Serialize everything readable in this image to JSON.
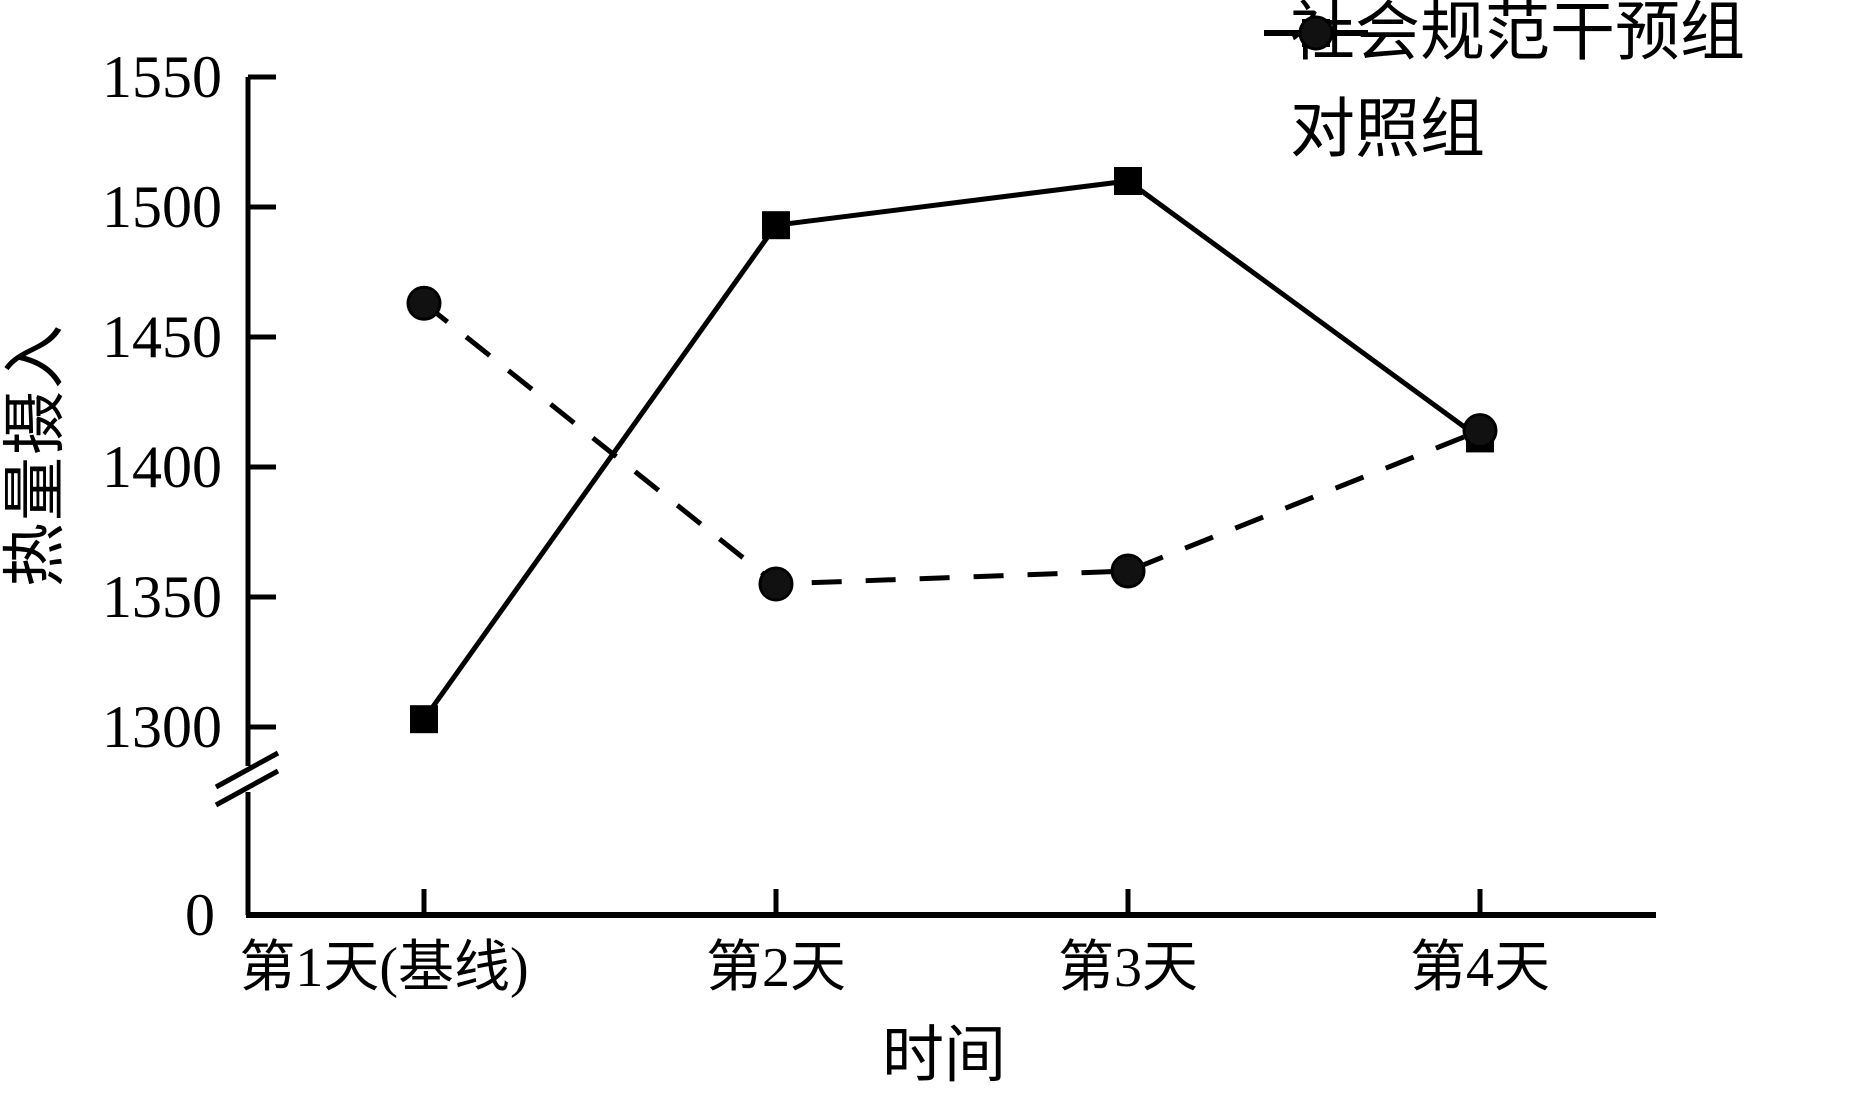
{
  "chart_data": {
    "type": "line",
    "title": "",
    "categories": [
      "第1天(基线)",
      "第2天",
      "第3天",
      "第4天"
    ],
    "series": [
      {
        "name": "社会规范干预组",
        "marker": "square",
        "line_style": "solid",
        "values": [
          1303,
          1493,
          1510,
          1411
        ]
      },
      {
        "name": "对照组",
        "marker": "circle",
        "line_style": "dashed",
        "values": [
          1463,
          1355,
          1360,
          1414
        ]
      }
    ],
    "xlabel": "时间",
    "ylabel": "热量摄入",
    "y_ticks": [
      1550,
      1500,
      1450,
      1400,
      1350,
      1300
    ],
    "origin_label": "0",
    "axis_break": true,
    "grid": false,
    "legend_position": "top-right",
    "axis_color": "#000000",
    "background_color": "#ffffff"
  }
}
